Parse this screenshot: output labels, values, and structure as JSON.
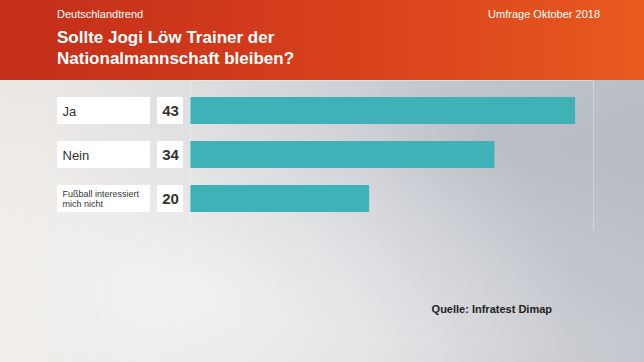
{
  "chart_data": {
    "type": "bar",
    "orientation": "horizontal",
    "header": "Deutschlandtrend",
    "title": "Sollte Jogi Löw Trainer der Nationalmannschaft bleiben?",
    "subtitle": "Umfrage Oktober 2018",
    "caption": "Quelle: Infratest Dimap",
    "categories": [
      "Ja",
      "Nein",
      "Fußball interessiert mich nicht"
    ],
    "values": [
      43,
      34,
      20
    ],
    "color": "#3fb2b7",
    "xlim": [
      0,
      45
    ],
    "data_labels": true,
    "tick_labels": "y",
    "grid": false
  }
}
